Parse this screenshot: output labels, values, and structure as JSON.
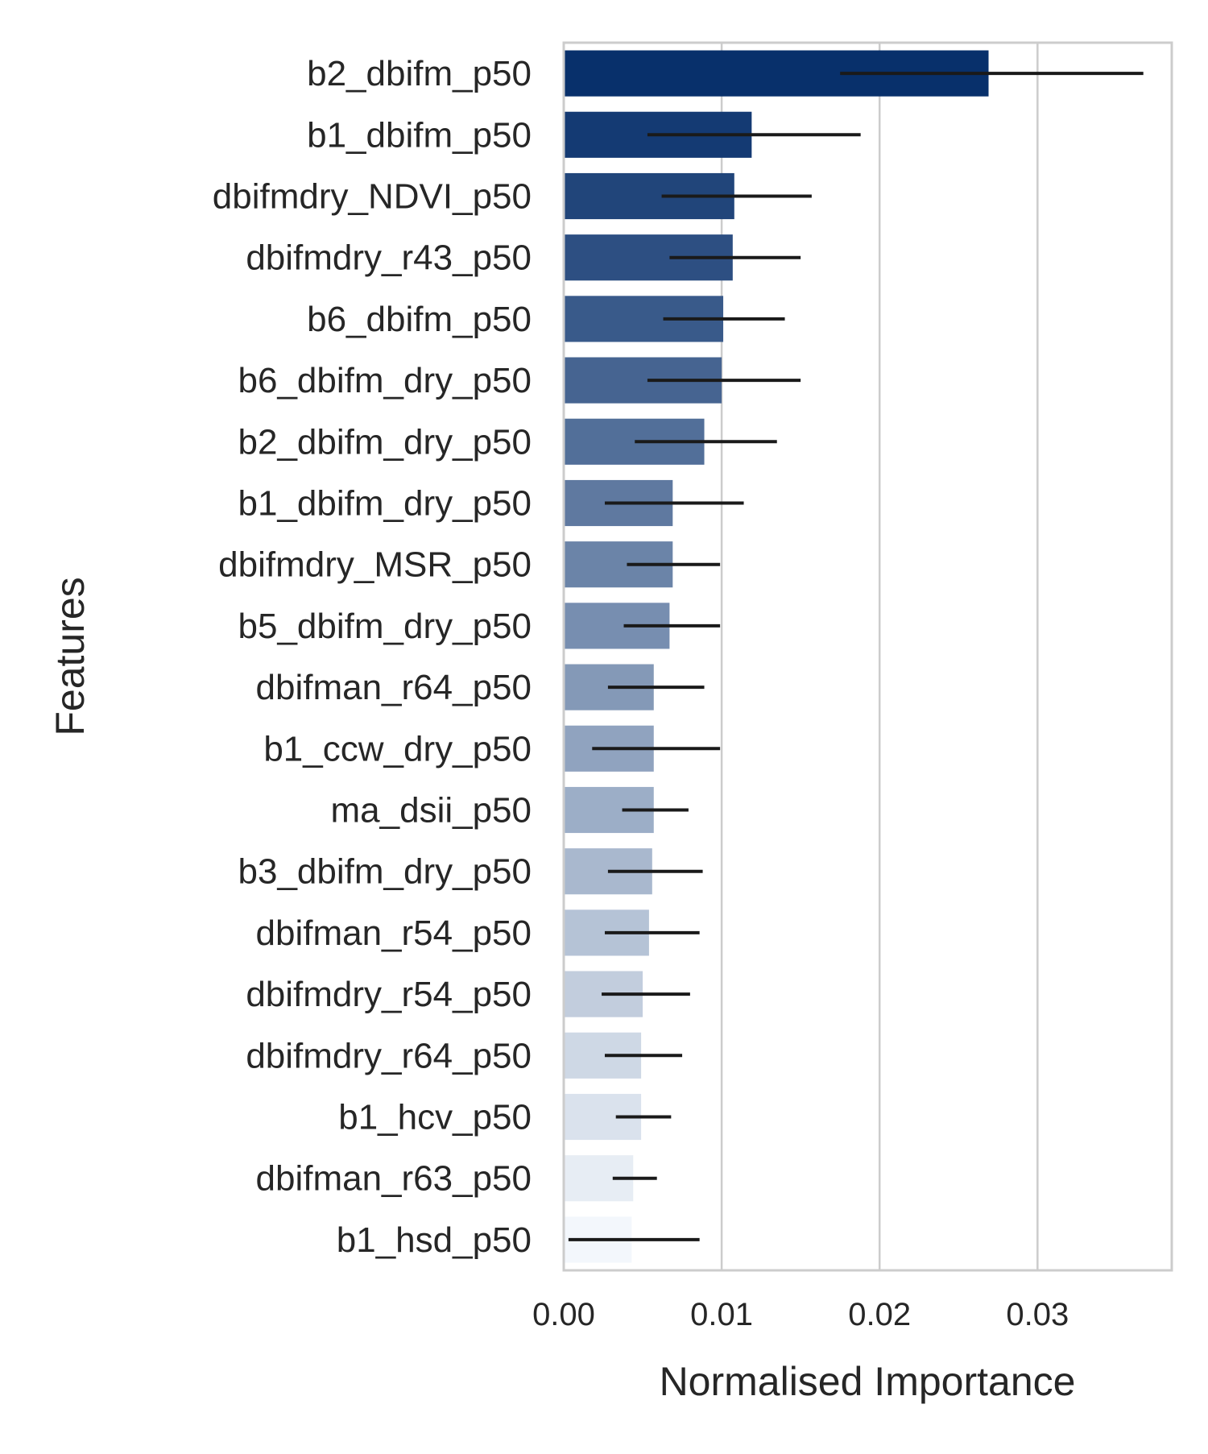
{
  "chart_data": {
    "type": "bar",
    "orientation": "horizontal",
    "xlabel": "Normalised Importance",
    "ylabel": "Features",
    "xlim": [
      0,
      0.0385
    ],
    "xticks": [
      0.0,
      0.01,
      0.02,
      0.03
    ],
    "xtick_labels": [
      "0.00",
      "0.01",
      "0.02",
      "0.03"
    ],
    "grid": "vertical",
    "palette_from": "#08306b",
    "palette_to": "#f3f7fc",
    "error_bar_color": "#1a1a1a",
    "categories": [
      "b2_dbifm_p50",
      "b1_dbifm_p50",
      "dbifmdry_NDVI_p50",
      "dbifmdry_r43_p50",
      "b6_dbifm_p50",
      "b6_dbifm_dry_p50",
      "b2_dbifm_dry_p50",
      "b1_dbifm_dry_p50",
      "dbifmdry_MSR_p50",
      "b5_dbifm_dry_p50",
      "dbifman_r64_p50",
      "b1_ccw_dry_p50",
      "ma_dsii_p50",
      "b3_dbifm_dry_p50",
      "dbifman_r54_p50",
      "dbifmdry_r54_p50",
      "dbifmdry_r64_p50",
      "b1_hcv_p50",
      "dbifman_r63_p50",
      "b1_hsd_p50"
    ],
    "values": [
      0.0269,
      0.0119,
      0.0108,
      0.0107,
      0.0101,
      0.01,
      0.0089,
      0.0069,
      0.0069,
      0.0067,
      0.0057,
      0.0057,
      0.0057,
      0.0056,
      0.0054,
      0.005,
      0.0049,
      0.0049,
      0.0044,
      0.0043
    ],
    "error_low": [
      0.0175,
      0.0053,
      0.0062,
      0.0067,
      0.0063,
      0.0053,
      0.0045,
      0.0026,
      0.004,
      0.0038,
      0.0028,
      0.0018,
      0.0037,
      0.0028,
      0.0026,
      0.0024,
      0.0026,
      0.0033,
      0.0031,
      0.0003
    ],
    "error_high": [
      0.0367,
      0.0188,
      0.0157,
      0.015,
      0.014,
      0.015,
      0.0135,
      0.0114,
      0.0099,
      0.0099,
      0.0089,
      0.0099,
      0.0079,
      0.0088,
      0.0086,
      0.008,
      0.0075,
      0.0068,
      0.0059,
      0.0086
    ]
  }
}
